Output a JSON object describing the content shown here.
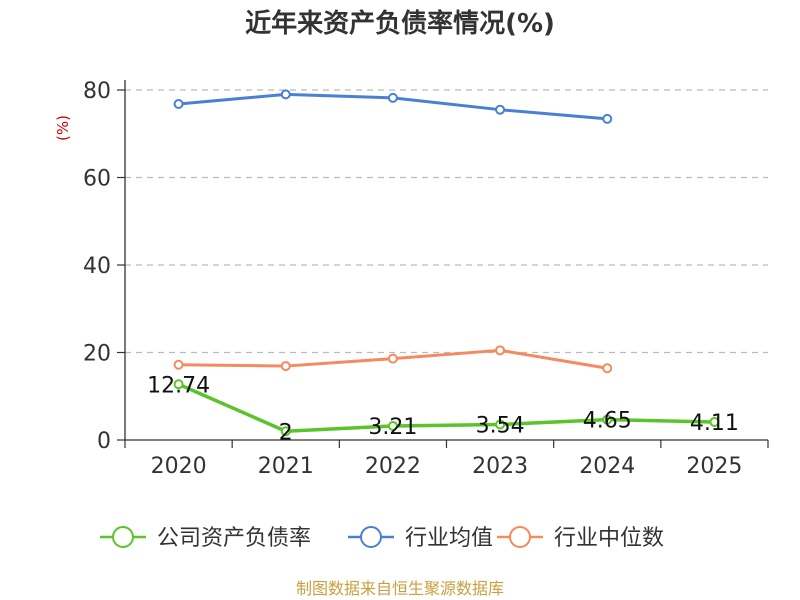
{
  "chart_data": {
    "type": "line",
    "title": "近年来资产负债率情况(%)",
    "ylabel": "(%)",
    "categories": [
      "2020",
      "2021",
      "2022",
      "2023",
      "2024",
      "2025"
    ],
    "yticks": [
      "0",
      "20",
      "40",
      "60",
      "80"
    ],
    "ylim": [
      0,
      80
    ],
    "grid": true,
    "legend_position": "bottom",
    "series": [
      {
        "name": "公司资产负债率",
        "color": "#5ac42a",
        "values": [
          12.74,
          2,
          3.21,
          3.54,
          4.65,
          4.11
        ],
        "labels": [
          "12.74",
          "2",
          "3.21",
          "3.54",
          "4.65",
          "4.11"
        ]
      },
      {
        "name": "行业均值",
        "color": "#4a7fd6",
        "values": [
          76.8,
          79.0,
          78.2,
          75.5,
          73.4,
          null
        ]
      },
      {
        "name": "行业中位数",
        "color": "#f48a5e",
        "values": [
          17.2,
          16.9,
          18.6,
          20.5,
          16.4,
          null
        ]
      }
    ]
  },
  "source": "制图数据来自恒生聚源数据库"
}
